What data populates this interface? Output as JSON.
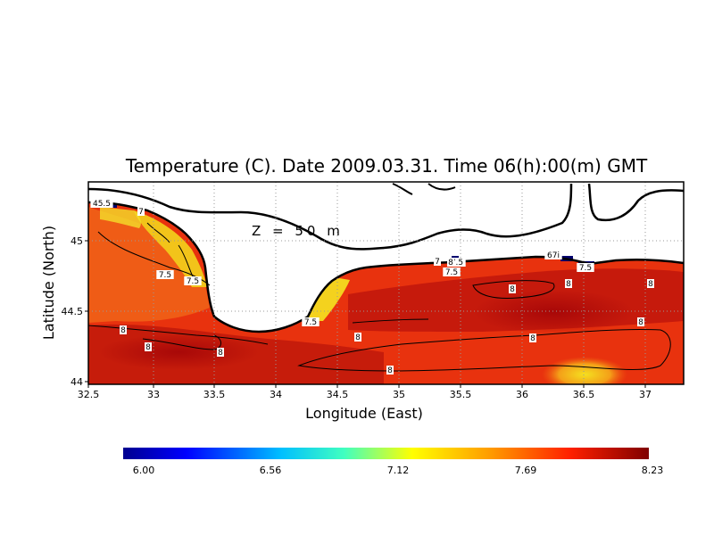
{
  "title": "Temperature (C). Date 2009.03.31. Time 06(h):00(m) GMT",
  "annotation": "Z = 50 m",
  "x_axis": {
    "label": "Longitude (East)",
    "ticks": [
      "32.5",
      "33",
      "33.5",
      "34",
      "34.5",
      "35",
      "35.5",
      "36",
      "36.5",
      "37"
    ]
  },
  "y_axis": {
    "label": "Latitude (North)",
    "ticks": [
      "45",
      "44.5",
      "44"
    ]
  },
  "contour_labels": [
    "45.5",
    "7",
    "7.5",
    "7.5",
    "8",
    "8",
    "8",
    "7.5",
    "8",
    "8",
    "7.5",
    "7",
    "7.5",
    "67i",
    "7.5",
    "8",
    "8",
    "8",
    "8",
    "8",
    "8"
  ],
  "colorbar": {
    "ticks": [
      "6.00",
      "6.56",
      "7.12",
      "7.69",
      "8.23"
    ],
    "min": 6.0,
    "max": 8.23
  },
  "colors": {
    "land": "#ffffff",
    "coast": "#000000",
    "grid": "#9a9a9a",
    "warm": "#e8240c",
    "hot": "#b4100a",
    "cool": "#f06a10",
    "yellow": "#f2d21a",
    "cold": "#00008a"
  }
}
